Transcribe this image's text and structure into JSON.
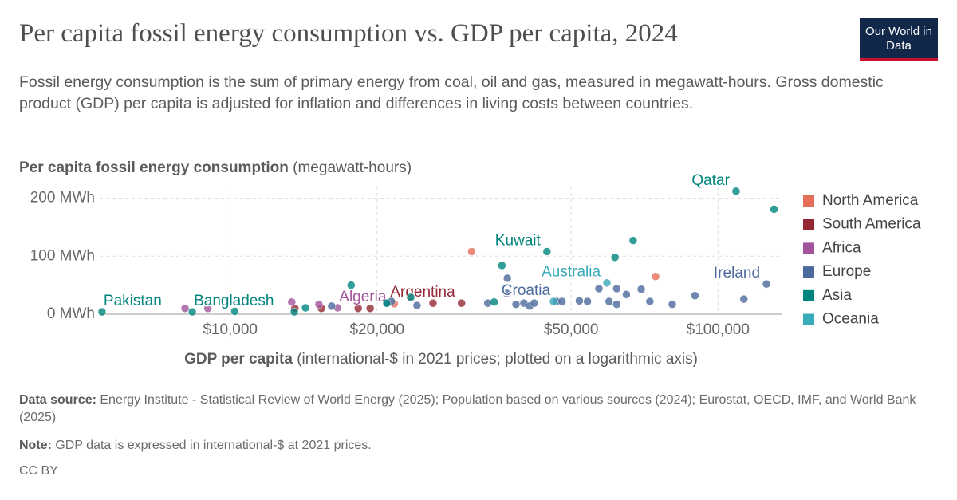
{
  "chart_data": {
    "type": "scatter",
    "title": "Per capita fossil energy consumption vs. GDP per capita, 2024",
    "subtitle": "Fossil energy consumption is the sum of primary energy from coal, oil and gas, measured in megawatt-hours. Gross domestic product (GDP) per capita is adjusted for inflation and differences in living costs between countries.",
    "logo": "Our World in Data",
    "ylabel": {
      "bold": "Per capita fossil energy consumption",
      "text": "(megawatt-hours)"
    },
    "xlabel": {
      "bold": "GDP per capita",
      "text": "(international-$ in 2021 prices; plotted on a logarithmic axis)"
    },
    "source": {
      "bold": "Data source:",
      "text": "Energy Institute - Statistical Review of World Energy (2025); Population based on various sources (2024); Eurostat, OECD, IMF, and World Bank (2025)"
    },
    "note": {
      "bold": "Note:",
      "text": "GDP data is expressed in international-$ at 2021 prices."
    },
    "license": "CC BY",
    "log_x": true,
    "grid": true,
    "xlim": [
      5400,
      135000
    ],
    "xticks": [
      {
        "value": 10000,
        "label": "$10,000"
      },
      {
        "value": 20000,
        "label": "$20,000"
      },
      {
        "value": 50000,
        "label": "$50,000"
      },
      {
        "value": 100000,
        "label": "$100,000"
      }
    ],
    "ylim": [
      0,
      220
    ],
    "yticks": [
      {
        "value": 0,
        "label": "0 MWh"
      },
      {
        "value": 100,
        "label": "100 MWh"
      },
      {
        "value": 200,
        "label": "200 MWh"
      }
    ],
    "series": [
      {
        "name": "North America",
        "color": "#E56E5A",
        "x": [
          31260,
          55600,
          74500,
          21700
        ],
        "values": [
          108,
          68,
          65,
          18
        ],
        "labels": [
          null,
          null,
          null,
          null
        ]
      },
      {
        "name": "South America",
        "color": "#932834",
        "x": [
          13570,
          15380,
          18300,
          19360,
          26050,
          29800
        ],
        "values": [
          10,
          10,
          10,
          10,
          19,
          19
        ],
        "labels": [
          null,
          null,
          null,
          null,
          null,
          "Argentina"
        ]
      },
      {
        "name": "Africa",
        "color": "#A2559C",
        "x": [
          8080,
          9000,
          13370,
          15200,
          16600
        ],
        "values": [
          10,
          10,
          21,
          17,
          11
        ],
        "labels": [
          null,
          null,
          null,
          null,
          "Algeria"
        ]
      },
      {
        "name": "Europe",
        "color": "#4C6A9C",
        "x": [
          16140,
          20990,
          21400,
          24150,
          33740,
          37000,
          36900,
          38540,
          40000,
          41100,
          42000,
          46700,
          47900,
          51970,
          54000,
          57000,
          59800,
          62000,
          62000,
          64900,
          69600,
          72500,
          80600,
          89700,
          113000,
          125700
        ],
        "values": [
          14,
          19,
          22,
          15,
          19,
          62,
          36,
          17,
          19,
          14,
          19,
          22,
          22,
          23,
          22,
          44,
          22,
          44,
          17,
          34,
          43,
          22,
          17,
          32,
          26,
          52
        ],
        "labels": [
          null,
          null,
          null,
          null,
          null,
          null,
          null,
          null,
          null,
          null,
          null,
          "Croatia",
          null,
          null,
          null,
          null,
          null,
          null,
          null,
          null,
          null,
          null,
          null,
          null,
          null,
          "Ireland"
        ]
      },
      {
        "name": "Asia",
        "color": "#00847E",
        "x": [
          5460,
          8360,
          10220,
          13530,
          14270,
          17700,
          23450,
          34760,
          36060,
          44600,
          61500,
          67000,
          108900,
          130300,
          20940
        ],
        "values": [
          4,
          4,
          5,
          4,
          11,
          50,
          29,
          21,
          84,
          108,
          98,
          127,
          212,
          181,
          19
        ],
        "labels": [
          "Pakistan",
          "Bangladesh",
          null,
          null,
          null,
          null,
          null,
          null,
          null,
          "Kuwait",
          null,
          null,
          "Qatar",
          null,
          null
        ]
      },
      {
        "name": "Oceania",
        "color": "#38AABA",
        "x": [
          59200,
          46000
        ],
        "values": [
          54,
          22
        ],
        "labels": [
          "Australia",
          null
        ]
      }
    ]
  }
}
